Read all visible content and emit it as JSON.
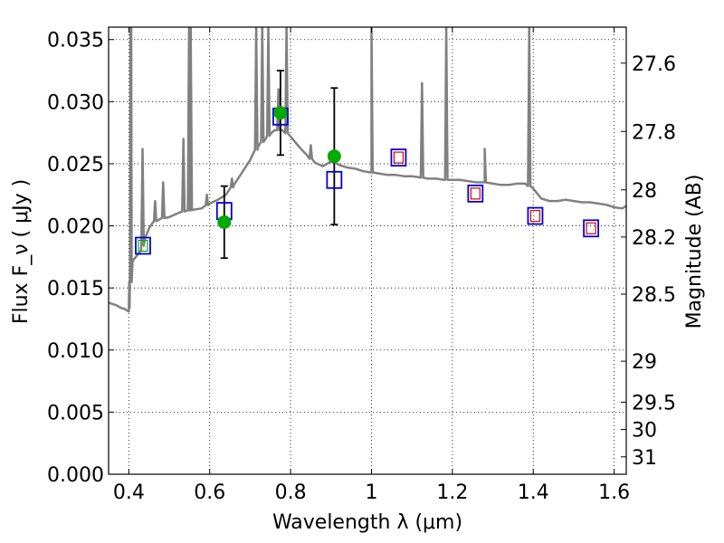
{
  "chart_data": {
    "type": "line",
    "xlabel": "Wavelength  λ (μm)",
    "ylabel": "Flux  F_ν  ( μJy )",
    "y2label": "Magnitude (AB)",
    "xlim": [
      0.35,
      1.63
    ],
    "ylim": [
      0,
      0.036
    ],
    "grid": true,
    "x_ticks": [
      0.4,
      0.6,
      0.8,
      1.0,
      1.2,
      1.4,
      1.6
    ],
    "x_tick_labels": [
      "0.4",
      "0.6",
      "0.8",
      "1",
      "1.2",
      "1.4",
      "1.6"
    ],
    "y_ticks": [
      0,
      0.005,
      0.01,
      0.015,
      0.02,
      0.025,
      0.03,
      0.035
    ],
    "y_tick_labels": [
      "0.000",
      "0.005",
      "0.010",
      "0.015",
      "0.020",
      "0.025",
      "0.030",
      "0.035"
    ],
    "mag_ticks": [
      {
        "label": "27.6",
        "flux": 0.0331
      },
      {
        "label": "27.8",
        "flux": 0.0276
      },
      {
        "label": "28",
        "flux": 0.0229
      },
      {
        "label": "28.2",
        "flux": 0.0191
      },
      {
        "label": "28.5",
        "flux": 0.0145
      },
      {
        "label": "29",
        "flux": 0.0091
      },
      {
        "label": "29.5",
        "flux": 0.0058
      },
      {
        "label": "30",
        "flux": 0.0036
      },
      {
        "label": "31",
        "flux": 0.0014
      }
    ],
    "colors": {
      "spectrum": "#808080",
      "observed": "#00aa00",
      "model_box": "#0000dd",
      "model_inner": "#dd0000",
      "errorbar": "#000000"
    },
    "spectrum": {
      "x": [
        0.35,
        0.37,
        0.38,
        0.39,
        0.395,
        0.4,
        0.402,
        0.405,
        0.406,
        0.41,
        0.415,
        0.42,
        0.425,
        0.43,
        0.44,
        0.45,
        0.46,
        0.48,
        0.5,
        0.52,
        0.54,
        0.56,
        0.58,
        0.6,
        0.62,
        0.64,
        0.66,
        0.68,
        0.7,
        0.72,
        0.74,
        0.75,
        0.76,
        0.78,
        0.8,
        0.82,
        0.84,
        0.86,
        0.88,
        0.9,
        0.92,
        0.94,
        0.96,
        0.98,
        1.0,
        1.02,
        1.04,
        1.06,
        1.08,
        1.1,
        1.12,
        1.14,
        1.16,
        1.18,
        1.2,
        1.22,
        1.24,
        1.26,
        1.28,
        1.3,
        1.32,
        1.34,
        1.36,
        1.38,
        1.4,
        1.42,
        1.44,
        1.46,
        1.48,
        1.5,
        1.52,
        1.54,
        1.56,
        1.58,
        1.6,
        1.62,
        1.63
      ],
      "y": [
        0.0138,
        0.0136,
        0.0134,
        0.0133,
        0.0132,
        0.0131,
        0.0134,
        0.0165,
        0.017,
        0.0172,
        0.0174,
        0.0176,
        0.0178,
        0.018,
        0.019,
        0.0198,
        0.0203,
        0.0206,
        0.0207,
        0.021,
        0.0212,
        0.0213,
        0.0214,
        0.0218,
        0.0221,
        0.0225,
        0.0233,
        0.0243,
        0.0253,
        0.0264,
        0.0271,
        0.0274,
        0.0277,
        0.0277,
        0.0272,
        0.0264,
        0.0257,
        0.0251,
        0.0248,
        0.0252,
        0.0249,
        0.0247,
        0.0246,
        0.0244,
        0.0243,
        0.0242,
        0.0241,
        0.0241,
        0.024,
        0.024,
        0.0239,
        0.0238,
        0.0238,
        0.0237,
        0.0237,
        0.0237,
        0.0236,
        0.0235,
        0.0235,
        0.0234,
        0.0233,
        0.0233,
        0.0234,
        0.0234,
        0.023,
        0.0222,
        0.022,
        0.022,
        0.0221,
        0.022,
        0.0219,
        0.0219,
        0.0218,
        0.0217,
        0.0215,
        0.0214,
        0.0216
      ]
    },
    "emission_lines": [
      {
        "x": 0.404,
        "peak": 0.036
      },
      {
        "x": 0.406,
        "peak": 0.036
      },
      {
        "x": 0.434,
        "peak": 0.0262
      },
      {
        "x": 0.465,
        "peak": 0.022
      },
      {
        "x": 0.485,
        "peak": 0.0235
      },
      {
        "x": 0.535,
        "peak": 0.027
      },
      {
        "x": 0.549,
        "peak": 0.036
      },
      {
        "x": 0.553,
        "peak": 0.036
      },
      {
        "x": 0.593,
        "peak": 0.0225
      },
      {
        "x": 0.655,
        "peak": 0.0238
      },
      {
        "x": 0.715,
        "peak": 0.036
      },
      {
        "x": 0.73,
        "peak": 0.036
      },
      {
        "x": 0.745,
        "peak": 0.036
      },
      {
        "x": 0.77,
        "peak": 0.031
      },
      {
        "x": 0.79,
        "peak": 0.036
      },
      {
        "x": 0.85,
        "peak": 0.0265
      },
      {
        "x": 0.91,
        "peak": 0.0255
      },
      {
        "x": 1.0,
        "peak": 0.036
      },
      {
        "x": 1.125,
        "peak": 0.0315
      },
      {
        "x": 1.185,
        "peak": 0.036
      },
      {
        "x": 1.28,
        "peak": 0.0262
      },
      {
        "x": 1.39,
        "peak": 0.036
      }
    ],
    "observed": [
      {
        "x": 0.636,
        "y": 0.0203,
        "err": 0.0029
      },
      {
        "x": 0.775,
        "y": 0.0291,
        "err": 0.0034
      },
      {
        "x": 0.908,
        "y": 0.0256,
        "err": 0.0055
      }
    ],
    "model_photometry": [
      {
        "x": 0.435,
        "y": 0.0184,
        "inner": "green"
      },
      {
        "x": 0.636,
        "y": 0.0212,
        "inner": "none"
      },
      {
        "x": 0.775,
        "y": 0.0288,
        "inner": "none"
      },
      {
        "x": 0.908,
        "y": 0.0237,
        "inner": "none"
      },
      {
        "x": 1.067,
        "y": 0.0255,
        "inner": "red"
      },
      {
        "x": 1.257,
        "y": 0.0226,
        "inner": "red"
      },
      {
        "x": 1.405,
        "y": 0.0208,
        "inner": "red"
      },
      {
        "x": 1.543,
        "y": 0.0198,
        "inner": "red"
      }
    ]
  }
}
